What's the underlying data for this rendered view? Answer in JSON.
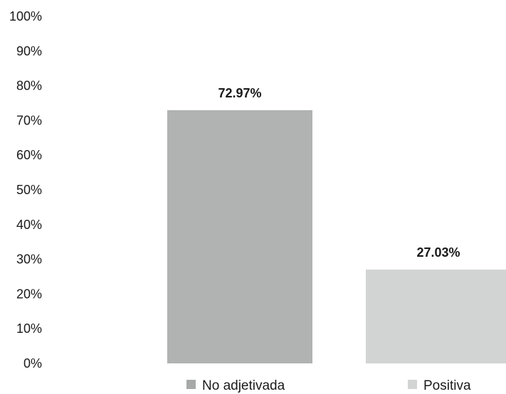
{
  "chart_data": {
    "type": "bar",
    "categories": [
      "No adjetivada",
      "Positiva"
    ],
    "values": [
      72.97,
      27.03
    ],
    "value_labels": [
      "72.97%",
      "27.03%"
    ],
    "colors": [
      "#b1b3b3",
      "#d2d3d3"
    ],
    "ylim": [
      0,
      100
    ],
    "ytick_labels": [
      "0%",
      "10%",
      "20%",
      "30%",
      "40%",
      "50%",
      "60%",
      "70%",
      "80%",
      "90%",
      "100%"
    ],
    "grid": false,
    "legend": {
      "placement": "bottom",
      "entries": [
        {
          "label": "No adjetivada",
          "color": "#a7a9a9"
        },
        {
          "label": "Positiva",
          "color": "#d2d3d3"
        }
      ]
    }
  }
}
